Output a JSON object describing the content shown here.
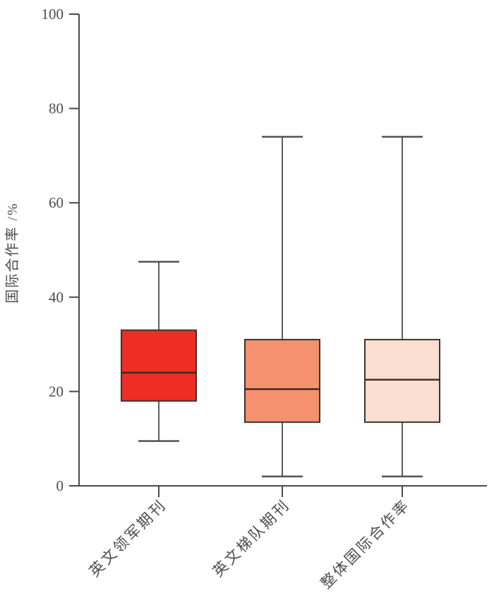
{
  "figure": {
    "background": "#ffffff",
    "axis_color": "#4a4a4a",
    "box_stroke_color": "#3a3330",
    "median_color": "#35271f",
    "text_color": "#4e4c4b"
  },
  "chart_data": {
    "type": "boxplot",
    "title": "",
    "xlabel": "",
    "ylabel": "国际合作率 /%",
    "ylim": [
      0,
      100
    ],
    "yticks": [
      0,
      20,
      40,
      60,
      80,
      100
    ],
    "grid": false,
    "legend": "none",
    "categories": [
      "英文领军期刊",
      "英文梯队期刊",
      "整体国际合作率"
    ],
    "series": [
      {
        "name": "英文领军期刊",
        "whisker_low": 9.5,
        "q1": 18,
        "median": 24,
        "q3": 33,
        "whisker_high": 47.5,
        "fill_color": "#ee2d24"
      },
      {
        "name": "英文梯队期刊",
        "whisker_low": 2,
        "q1": 13.5,
        "median": 20.5,
        "q3": 31,
        "whisker_high": 74,
        "fill_color": "#f5916e"
      },
      {
        "name": "整体国际合作率",
        "whisker_low": 2,
        "q1": 13.5,
        "median": 22.5,
        "q3": 31,
        "whisker_high": 74,
        "fill_color": "#fadfd0"
      }
    ]
  }
}
